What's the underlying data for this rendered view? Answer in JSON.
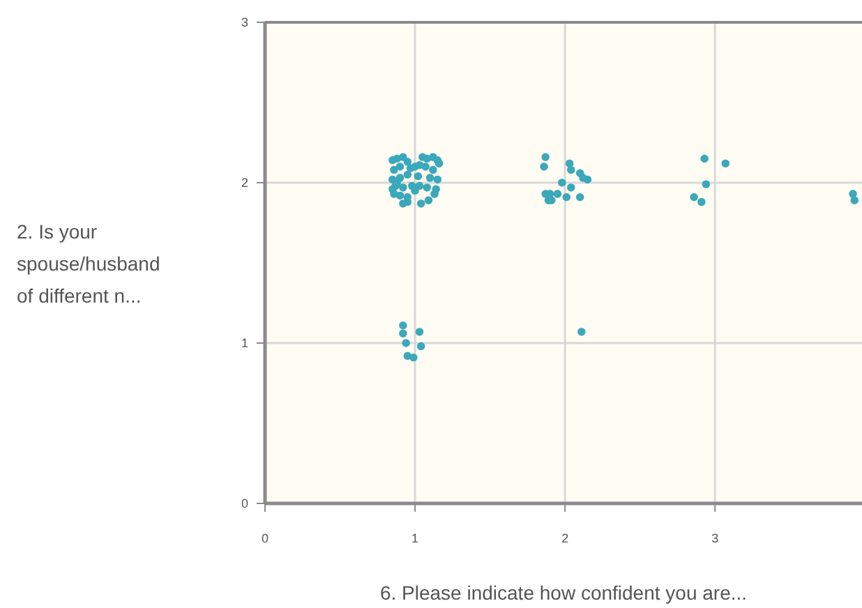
{
  "chart_data": {
    "type": "scatter",
    "xlabel": "6. Please indicate how confident you are...",
    "ylabel": "2. Is your spouse/husband of different n...",
    "xlim": [
      0,
      3.98
    ],
    "ylim": [
      0,
      3
    ],
    "xticks": [
      0,
      1,
      2,
      3
    ],
    "yticks": [
      0,
      1,
      2,
      3
    ],
    "grid": true,
    "marker": "circle",
    "series": [
      {
        "color": "#3ba8bb",
        "x": [
          0.85,
          0.88,
          0.92,
          0.95,
          1.05,
          1.08,
          1.12,
          1.15,
          1.16,
          0.86,
          0.9,
          0.97,
          1.0,
          1.03,
          1.07,
          1.12,
          0.85,
          0.88,
          0.9,
          0.95,
          1.02,
          1.1,
          1.15,
          0.85,
          0.87,
          0.92,
          0.98,
          1.03,
          1.08,
          1.14,
          0.86,
          0.9,
          0.95,
          1.0,
          1.13,
          0.92,
          0.95,
          1.04,
          1.09,
          0.92,
          0.92,
          0.94,
          1.03,
          1.04,
          0.95,
          0.99,
          2.11,
          1.87,
          1.86,
          2.03,
          2.04,
          2.1,
          2.12,
          2.15,
          1.98,
          2.04,
          1.87,
          1.9,
          1.95,
          1.89,
          2.01,
          2.1,
          1.91,
          2.93,
          3.07,
          2.94,
          2.86,
          2.91,
          3.92,
          3.93
        ],
        "values": [
          2.14,
          2.15,
          2.16,
          2.13,
          2.16,
          2.15,
          2.16,
          2.14,
          2.12,
          2.08,
          2.1,
          2.09,
          2.1,
          2.11,
          2.1,
          2.08,
          2.02,
          2.0,
          2.03,
          2.05,
          2.04,
          2.03,
          2.02,
          1.96,
          1.98,
          1.97,
          1.98,
          1.98,
          1.97,
          1.96,
          1.93,
          1.92,
          1.91,
          1.95,
          1.93,
          1.87,
          1.88,
          1.87,
          1.89,
          1.11,
          1.06,
          1.0,
          1.07,
          0.98,
          0.92,
          0.91,
          1.07,
          2.16,
          2.1,
          2.12,
          2.08,
          2.06,
          2.03,
          2.02,
          2.0,
          1.97,
          1.93,
          1.93,
          1.93,
          1.89,
          1.91,
          1.91,
          1.89,
          2.15,
          2.12,
          1.99,
          1.91,
          1.88,
          1.93,
          1.89
        ]
      }
    ]
  }
}
